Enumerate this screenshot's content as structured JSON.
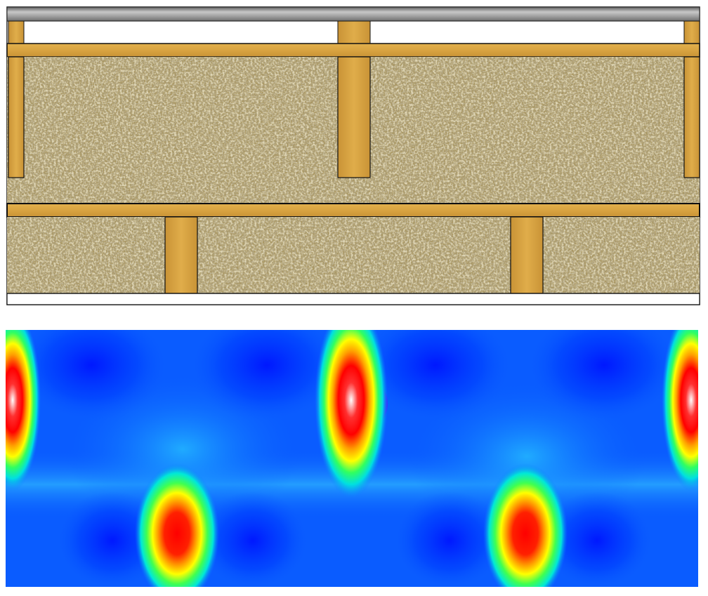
{
  "figure": {
    "top_panel": {
      "kind": "wall-cross-section",
      "layers_top_to_bottom": [
        "metal-cladding",
        "air-gap-with-battens",
        "horizontal-batten",
        "insulation-with-studs",
        "horizontal-batten",
        "insulation-with-offset-studs"
      ],
      "colors": {
        "cladding": "#9a9a9a",
        "wood": "#d9a441",
        "wood_dark": "#b9852c",
        "insulation": "#9c8a5c",
        "outline": "#111111"
      },
      "upper_stud_count": 3,
      "lower_stud_count": 2
    },
    "bottom_panel": {
      "kind": "thermal-heat-flux-map",
      "colormap": [
        "#1b00ff",
        "#0060ff",
        "#00c8ff",
        "#00ff90",
        "#a0ff00",
        "#ffff00",
        "#ff9000",
        "#ff0000",
        "#ffffff"
      ],
      "hotspot_count": 5,
      "background_color": "#0a5cff"
    }
  }
}
